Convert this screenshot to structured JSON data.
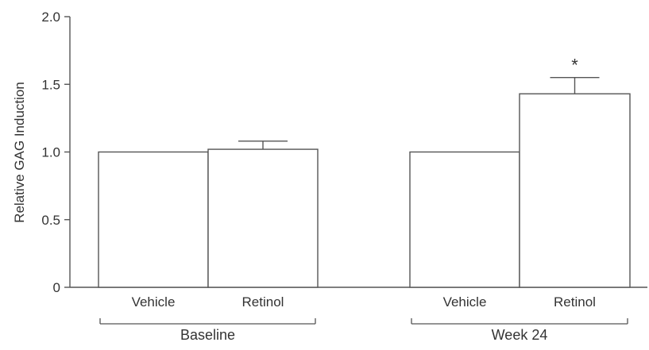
{
  "chart_data": {
    "type": "bar",
    "title": "",
    "xlabel": "",
    "ylabel": "Relative GAG Induction",
    "ylim": [
      0,
      2.0
    ],
    "yticks": [
      {
        "value": 0,
        "label": "0"
      },
      {
        "value": 0.5,
        "label": "0.5"
      },
      {
        "value": 1.0,
        "label": "1.0"
      },
      {
        "value": 1.5,
        "label": "1.5"
      },
      {
        "value": 2.0,
        "label": "2.0"
      }
    ],
    "grid": false,
    "groups": [
      {
        "name": "Baseline",
        "bars": [
          {
            "category": "Vehicle",
            "value": 1.0,
            "error": 0,
            "annotation": ""
          },
          {
            "category": "Retinol",
            "value": 1.02,
            "error": 0.06,
            "annotation": ""
          }
        ]
      },
      {
        "name": "Week 24",
        "bars": [
          {
            "category": "Vehicle",
            "value": 1.0,
            "error": 0,
            "annotation": ""
          },
          {
            "category": "Retinol",
            "value": 1.43,
            "error": 0.12,
            "annotation": "*"
          }
        ]
      }
    ],
    "colors": {
      "bar_fill": "#ffffff",
      "stroke": "#555555",
      "text": "#333333"
    }
  }
}
